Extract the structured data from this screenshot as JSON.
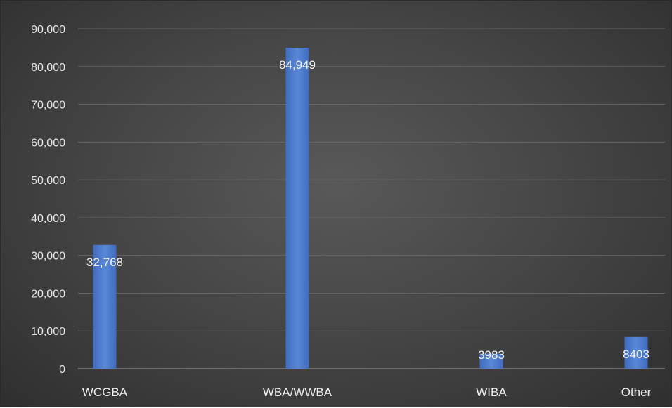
{
  "chart_data": {
    "type": "bar",
    "categories": [
      "WCGBA",
      "WBA/WWBA",
      "WIBA",
      "Other"
    ],
    "values": [
      32768,
      84949,
      3983,
      8403
    ],
    "data_labels": [
      "32,768",
      "84,949",
      "3983",
      "8403"
    ],
    "title": "",
    "xlabel": "",
    "ylabel": "",
    "ylim": [
      0,
      90000
    ],
    "y_ticks": [
      0,
      10000,
      20000,
      30000,
      40000,
      50000,
      60000,
      70000,
      80000,
      90000
    ],
    "y_tick_labels": [
      "0",
      "10,000",
      "20,000",
      "30,000",
      "40,000",
      "50,000",
      "60,000",
      "70,000",
      "80,000",
      "90,000"
    ],
    "grid": true,
    "legend": false,
    "colors": {
      "bar": "#4472c4",
      "bar_light": "#5b8ad6",
      "grid": "#6a6a6a",
      "text": "#e6e6e6"
    }
  }
}
